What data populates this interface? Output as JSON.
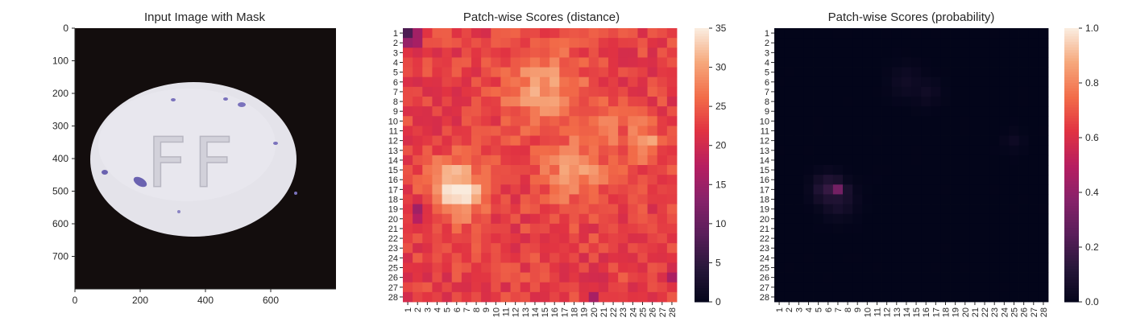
{
  "chart_data": [
    {
      "type": "image",
      "title": "Input Image with Mask",
      "xticks": [
        "0",
        "200",
        "400",
        "600"
      ],
      "xtick_values": [
        0,
        200,
        400,
        600
      ],
      "yticks": [
        "0",
        "100",
        "200",
        "300",
        "400",
        "500",
        "600",
        "700"
      ],
      "ytick_values": [
        0,
        100,
        200,
        300,
        400,
        500,
        600,
        700
      ],
      "xlim": [
        0,
        800
      ],
      "ylim": [
        800,
        0
      ],
      "content": {
        "background": "#130d0d",
        "pill_color": "#e6e5ec",
        "imprint": "FF",
        "stain_color": "#6a62b0"
      }
    },
    {
      "type": "heatmap",
      "title": "Patch-wise Scores (distance)",
      "rows": 28,
      "cols": 28,
      "vmin": 0,
      "vmax": 35,
      "colormap": "rocket",
      "colorbar_ticks": [
        "0",
        "5",
        "10",
        "15",
        "20",
        "25",
        "30",
        "35"
      ],
      "colorbar_values": [
        0,
        5,
        10,
        15,
        20,
        25,
        30,
        35
      ],
      "base_value": 23,
      "hotspots": [
        {
          "row": 17,
          "col": 6,
          "value": 35,
          "spread": 2.0
        },
        {
          "row": 7,
          "col": 15,
          "value": 30,
          "spread": 2.8
        },
        {
          "row": 12,
          "col": 25,
          "value": 30,
          "spread": 1.4
        },
        {
          "row": 15,
          "col": 18,
          "value": 29,
          "spread": 2.5
        },
        {
          "row": 11,
          "col": 20,
          "value": 28,
          "spread": 2.2
        }
      ],
      "coldspots": [
        {
          "row": 1,
          "col": 1,
          "value": 8,
          "spread": 0.7
        },
        {
          "row": 2,
          "col": 1,
          "value": 14,
          "spread": 0.7
        },
        {
          "row": 26,
          "col": 28,
          "value": 16,
          "spread": 0.6
        },
        {
          "row": 19,
          "col": 2,
          "value": 16,
          "spread": 0.8
        },
        {
          "row": 28,
          "col": 20,
          "value": 18,
          "spread": 0.9
        }
      ]
    },
    {
      "type": "heatmap",
      "title": "Patch-wise Scores (probability)",
      "rows": 28,
      "cols": 28,
      "vmin": 0.0,
      "vmax": 1.0,
      "colormap": "rocket",
      "colorbar_ticks": [
        "0.0",
        "0.2",
        "0.4",
        "0.6",
        "0.8",
        "1.0"
      ],
      "colorbar_values": [
        0.0,
        0.2,
        0.4,
        0.6,
        0.8,
        1.0
      ],
      "base_value": 0.0,
      "hotspots": [
        {
          "row": 17,
          "col": 7,
          "value": 0.32,
          "spread": 0.6
        },
        {
          "row": 17,
          "col": 6,
          "value": 0.16,
          "spread": 1.0
        },
        {
          "row": 18,
          "col": 7,
          "value": 0.1,
          "spread": 1.2
        },
        {
          "row": 6,
          "col": 14,
          "value": 0.05,
          "spread": 1.2
        },
        {
          "row": 7,
          "col": 16,
          "value": 0.05,
          "spread": 1.0
        },
        {
          "row": 12,
          "col": 25,
          "value": 0.04,
          "spread": 0.7
        }
      ]
    }
  ]
}
